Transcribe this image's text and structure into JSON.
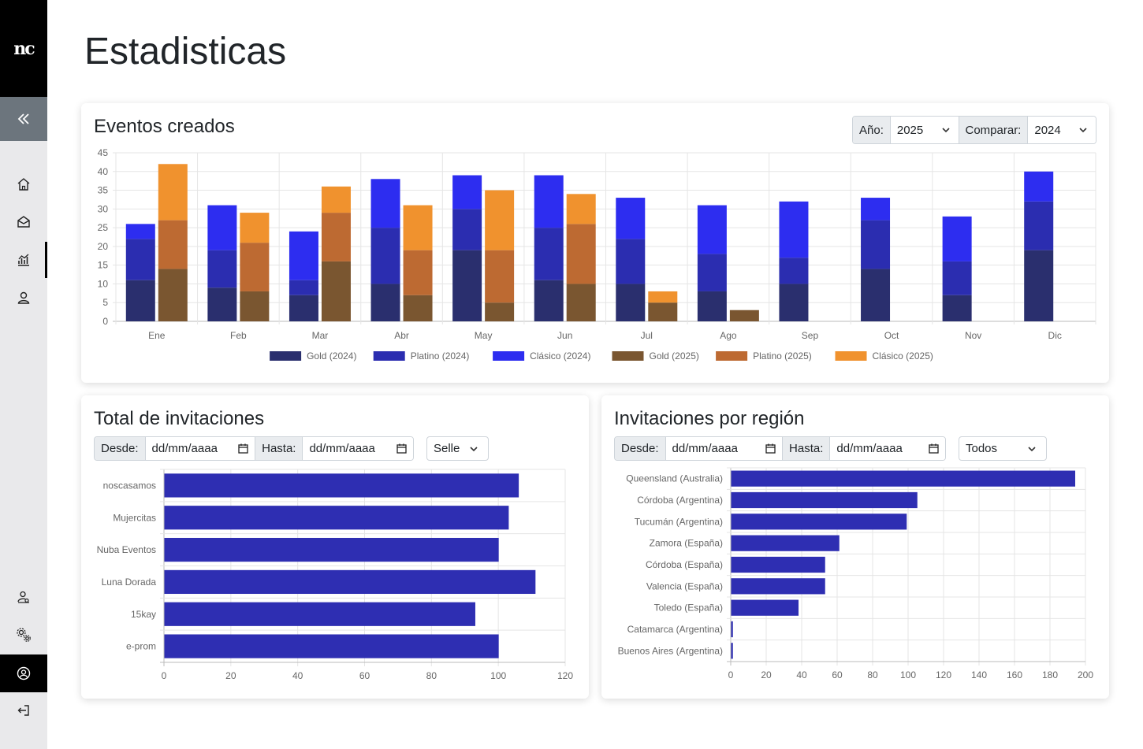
{
  "app": {
    "logo": "nc"
  },
  "page": {
    "title": "Estadisticas"
  },
  "sidebar": {
    "nav": [
      "home-icon",
      "inbox-icon",
      "stats-icon",
      "user-icon"
    ],
    "bottom": [
      "user-settings-icon",
      "gears-icon",
      "profile-icon",
      "logout-icon"
    ]
  },
  "eventos": {
    "title": "Eventos creados",
    "year_label": "Año:",
    "year_value": "2025",
    "compare_label": "Comparar:",
    "compare_value": "2024"
  },
  "invitaciones": {
    "title": "Total de invitaciones",
    "desde_label": "Desde:",
    "desde_value": "dd/mm/aaaa",
    "hasta_label": "Hasta:",
    "hasta_value": "dd/mm/aaaa",
    "seller_value": "Seller"
  },
  "region": {
    "title": "Invitaciones por región",
    "desde_label": "Desde:",
    "desde_value": "dd/mm/aaaa",
    "hasta_label": "Hasta:",
    "hasta_value": "dd/mm/aaaa",
    "filter_value": "Todos"
  },
  "colors": {
    "gold2024": "#2a2f6e",
    "platino2024": "#2b2db0",
    "clasico2024": "#2d2df0",
    "gold2025": "#7a5630",
    "platino2025": "#bd6a32",
    "clasico2025": "#f0922e",
    "hbar": "#2e2eb2"
  },
  "chart_data": [
    {
      "type": "bar",
      "stacked": true,
      "categories": [
        "Ene",
        "Feb",
        "Mar",
        "Abr",
        "May",
        "Jun",
        "Jul",
        "Ago",
        "Sep",
        "Oct",
        "Nov",
        "Dic"
      ],
      "ylim": [
        0,
        45
      ],
      "yticks": [
        0,
        5,
        10,
        15,
        20,
        25,
        30,
        35,
        40,
        45
      ],
      "grid": true,
      "legend": "bottom",
      "series": [
        {
          "name": "Gold (2024)",
          "stack": "2024",
          "values": [
            11,
            9,
            7,
            10,
            19,
            11,
            10,
            8,
            10,
            14,
            7,
            19
          ]
        },
        {
          "name": "Platino (2024)",
          "stack": "2024",
          "values": [
            11,
            10,
            4,
            15,
            11,
            14,
            12,
            10,
            7,
            13,
            9,
            13
          ]
        },
        {
          "name": "Clásico (2024)",
          "stack": "2024",
          "values": [
            4,
            12,
            13,
            13,
            9,
            14,
            11,
            13,
            15,
            6,
            12,
            8
          ]
        },
        {
          "name": "Gold (2025)",
          "stack": "2025",
          "values": [
            14,
            8,
            16,
            7,
            5,
            10,
            5,
            3,
            0,
            0,
            0,
            0
          ]
        },
        {
          "name": "Platino (2025)",
          "stack": "2025",
          "values": [
            13,
            13,
            13,
            12,
            14,
            16,
            0,
            0,
            0,
            0,
            0,
            0
          ]
        },
        {
          "name": "Clásico (2025)",
          "stack": "2025",
          "values": [
            15,
            8,
            7,
            12,
            16,
            8,
            3,
            0,
            0,
            0,
            0,
            0
          ]
        }
      ]
    },
    {
      "type": "bar",
      "orientation": "horizontal",
      "categories": [
        "noscasamos",
        "Mujercitas",
        "Nuba Eventos",
        "Luna Dorada",
        "15kay",
        "e-prom"
      ],
      "values": [
        106,
        103,
        100,
        111,
        93,
        100
      ],
      "xlim": [
        0,
        120
      ],
      "xticks": [
        0,
        20,
        40,
        60,
        80,
        100,
        120
      ],
      "grid": true
    },
    {
      "type": "bar",
      "orientation": "horizontal",
      "categories": [
        "Queensland (Australia)",
        "Córdoba (Argentina)",
        "Tucumán (Argentina)",
        "Zamora (España)",
        "Córdoba (España)",
        "Valencia (España)",
        "Toledo (España)",
        "Catamarca (Argentina)",
        "Buenos Aires (Argentina)"
      ],
      "values": [
        194,
        105,
        99,
        61,
        53,
        53,
        38,
        1,
        1
      ],
      "xlim": [
        0,
        200
      ],
      "xticks": [
        0,
        20,
        40,
        60,
        80,
        100,
        120,
        140,
        160,
        180,
        200
      ],
      "grid": true
    }
  ]
}
